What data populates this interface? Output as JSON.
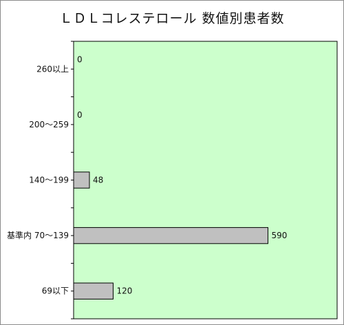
{
  "chart_data": {
    "type": "bar",
    "orientation": "horizontal",
    "title": "ＬＤＬコレステロール 数値別患者数",
    "categories": [
      "260以上",
      "200～259",
      "140～199",
      "基準内 70～139",
      "69以下"
    ],
    "values": [
      0,
      0,
      48,
      590,
      120
    ],
    "xlim": [
      0,
      800
    ],
    "grid": false,
    "legend": "none",
    "colors": {
      "plot_background": "#ccffcc",
      "bar_fill": "#c0c0c0",
      "bar_stroke": "#000000"
    }
  }
}
